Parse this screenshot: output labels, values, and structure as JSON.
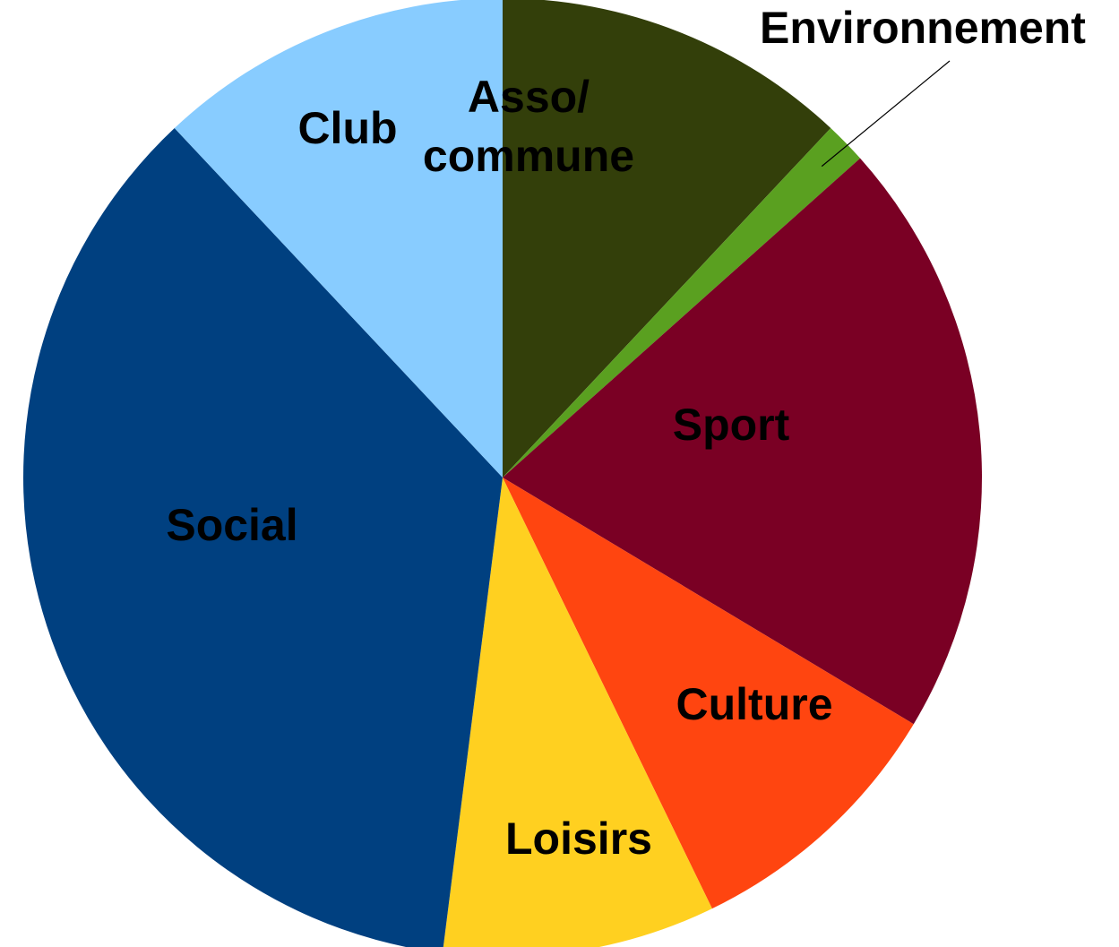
{
  "chart_data": {
    "type": "pie",
    "categories": [
      "Asso/\ncommune",
      "Environnement",
      "Sport",
      "Culture",
      "Loisirs",
      "Social",
      "Club"
    ],
    "values": [
      12,
      1.4,
      20.2,
      9.2,
      9.2,
      36,
      12
    ],
    "colors": [
      "#333f0a",
      "#5aa020",
      "#7a0024",
      "#ff4510",
      "#ffd020",
      "#004080",
      "#88ccff"
    ]
  }
}
